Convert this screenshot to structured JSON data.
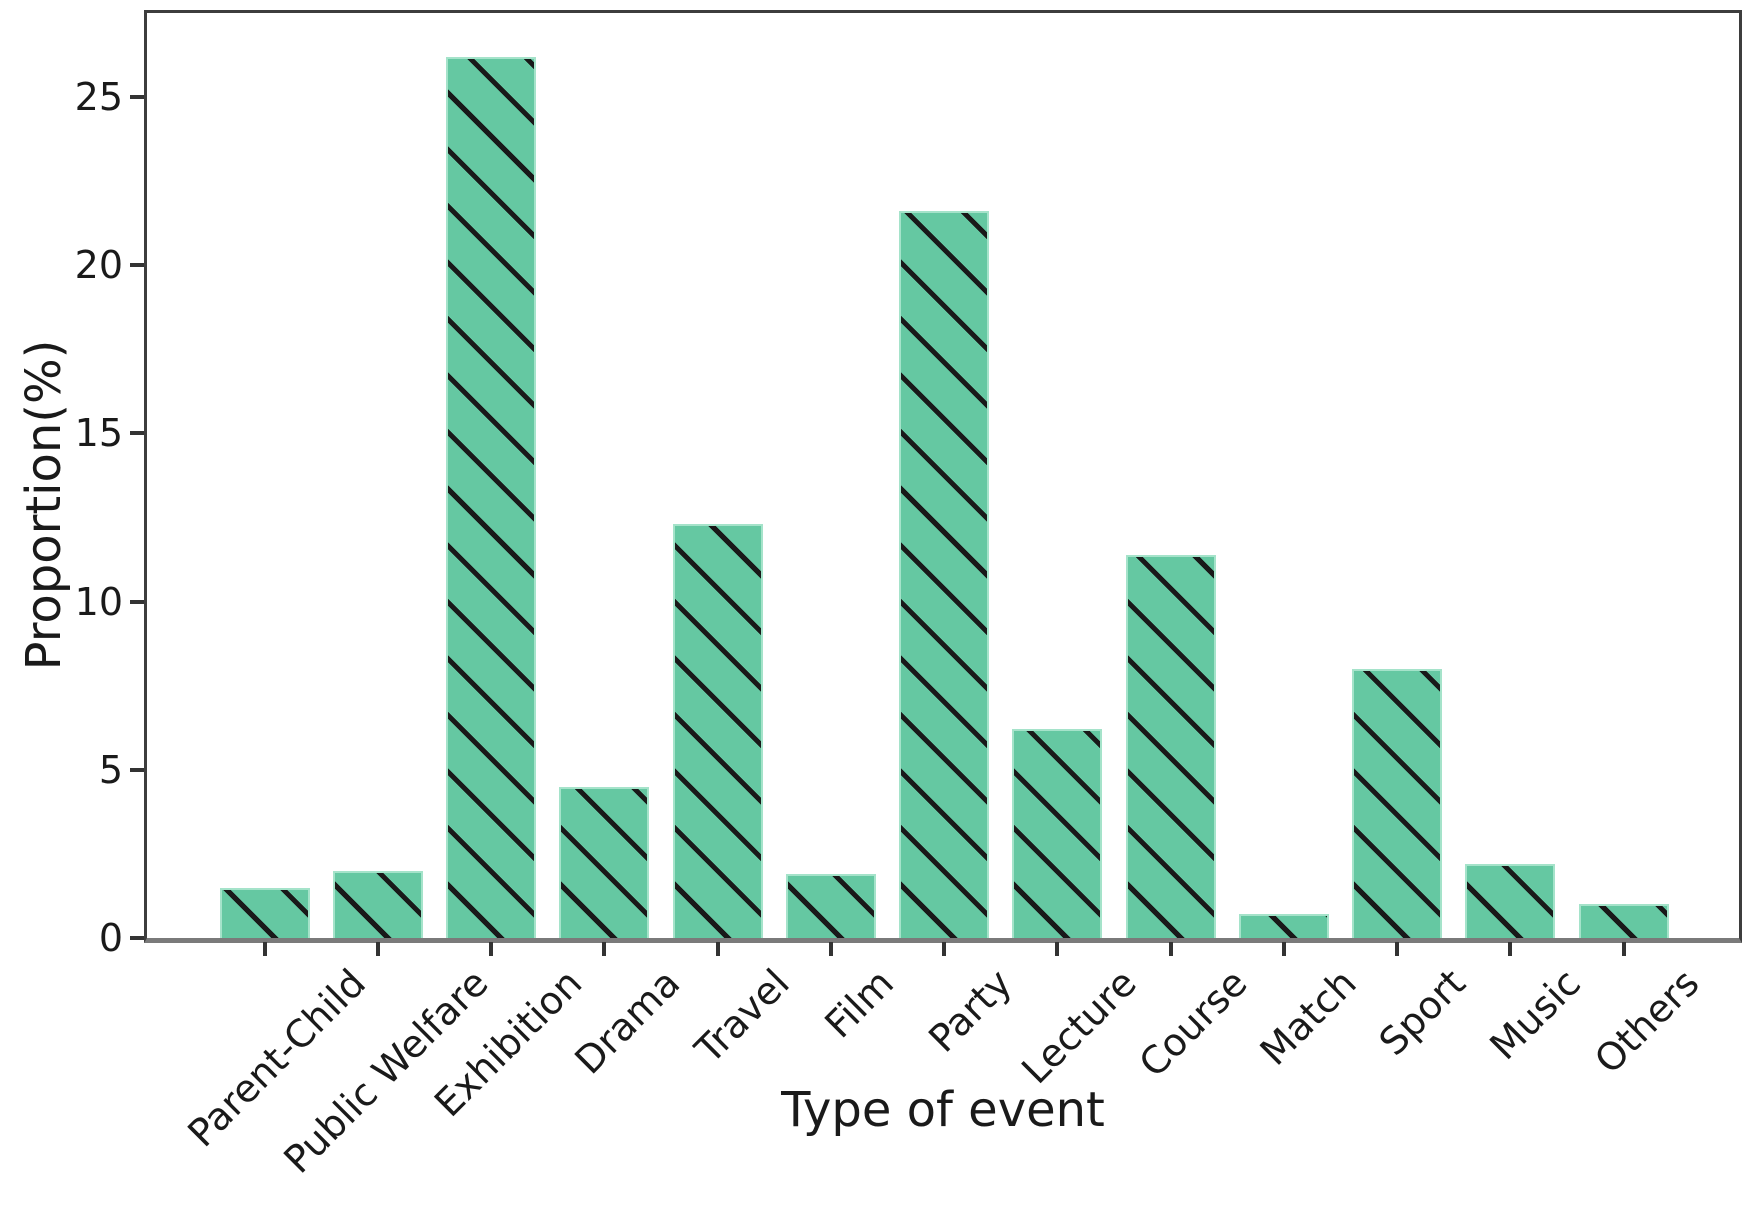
{
  "chart_data": {
    "type": "bar",
    "title": "",
    "xlabel": "Type of event",
    "ylabel": "Proportion(%)",
    "categories": [
      "Parent-Child",
      "Public Welfare",
      "Exhibition",
      "Drama",
      "Travel",
      "Film",
      "Party",
      "Lecture",
      "Course",
      "Match",
      "Sport",
      "Music",
      "Others"
    ],
    "values": [
      1.5,
      2.0,
      26.2,
      4.5,
      12.3,
      1.9,
      21.6,
      6.2,
      11.4,
      0.7,
      8.0,
      2.2,
      1.0
    ],
    "yticks": [
      0,
      5,
      10,
      15,
      20,
      25
    ],
    "ylim": [
      0,
      27.5
    ],
    "grid": false,
    "legend": null,
    "bar_color": "#65c8a2",
    "bar_edge_color": "#a5e3ca",
    "hatch_pattern": "/",
    "hatch_color": "#191919",
    "x_tick_label_rotation_deg": 45
  }
}
